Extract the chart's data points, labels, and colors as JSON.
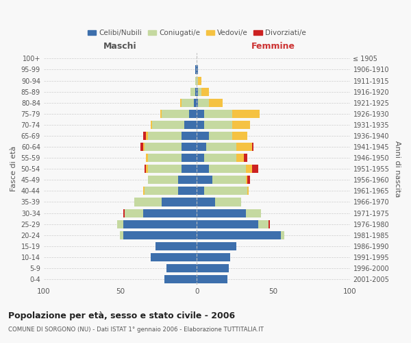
{
  "age_groups": [
    "0-4",
    "5-9",
    "10-14",
    "15-19",
    "20-24",
    "25-29",
    "30-34",
    "35-39",
    "40-44",
    "45-49",
    "50-54",
    "55-59",
    "60-64",
    "65-69",
    "70-74",
    "75-79",
    "80-84",
    "85-89",
    "90-94",
    "95-99",
    "100+"
  ],
  "birth_years": [
    "2001-2005",
    "1996-2000",
    "1991-1995",
    "1986-1990",
    "1981-1985",
    "1976-1980",
    "1971-1975",
    "1966-1970",
    "1961-1965",
    "1956-1960",
    "1951-1955",
    "1946-1950",
    "1941-1945",
    "1936-1940",
    "1931-1935",
    "1926-1930",
    "1921-1925",
    "1916-1920",
    "1911-1915",
    "1906-1910",
    "≤ 1905"
  ],
  "maschi": {
    "celibi": [
      21,
      20,
      30,
      27,
      48,
      48,
      35,
      23,
      12,
      12,
      10,
      10,
      10,
      10,
      8,
      5,
      2,
      1,
      0,
      1,
      0
    ],
    "coniugati": [
      0,
      0,
      0,
      0,
      2,
      4,
      12,
      18,
      22,
      20,
      22,
      22,
      24,
      22,
      21,
      18,
      8,
      3,
      1,
      0,
      0
    ],
    "vedovi": [
      0,
      0,
      0,
      0,
      0,
      0,
      0,
      0,
      1,
      0,
      1,
      1,
      1,
      1,
      1,
      1,
      1,
      0,
      0,
      0,
      0
    ],
    "divorziati": [
      0,
      0,
      0,
      0,
      0,
      0,
      1,
      0,
      0,
      0,
      1,
      0,
      2,
      2,
      0,
      0,
      0,
      0,
      0,
      0,
      0
    ]
  },
  "femmine": {
    "nubili": [
      20,
      21,
      22,
      26,
      55,
      40,
      32,
      12,
      5,
      10,
      8,
      5,
      6,
      8,
      5,
      5,
      1,
      1,
      0,
      1,
      0
    ],
    "coniugate": [
      0,
      0,
      0,
      0,
      2,
      7,
      10,
      17,
      28,
      22,
      24,
      21,
      20,
      15,
      18,
      18,
      7,
      2,
      1,
      0,
      0
    ],
    "vedove": [
      0,
      0,
      0,
      0,
      0,
      0,
      0,
      0,
      1,
      1,
      4,
      5,
      10,
      10,
      12,
      18,
      9,
      5,
      2,
      0,
      0
    ],
    "divorziate": [
      0,
      0,
      0,
      0,
      0,
      1,
      0,
      0,
      0,
      2,
      4,
      2,
      1,
      0,
      0,
      0,
      0,
      0,
      0,
      0,
      0
    ]
  },
  "colors": {
    "celibi": "#3d6fac",
    "coniugati": "#c5d9a0",
    "vedovi": "#f5c242",
    "divorziati": "#cc2222"
  },
  "xlim": 100,
  "title": "Popolazione per età, sesso e stato civile - 2006",
  "subtitle": "COMUNE DI SORGONO (NU) - Dati ISTAT 1° gennaio 2006 - Elaborazione TUTTITALIA.IT",
  "ylabel_left": "Fasce di età",
  "ylabel_right": "Anni di nascita",
  "xlabel_left": "Maschi",
  "xlabel_right": "Femmine",
  "background_color": "#f8f8f8",
  "grid_color": "#cccccc"
}
